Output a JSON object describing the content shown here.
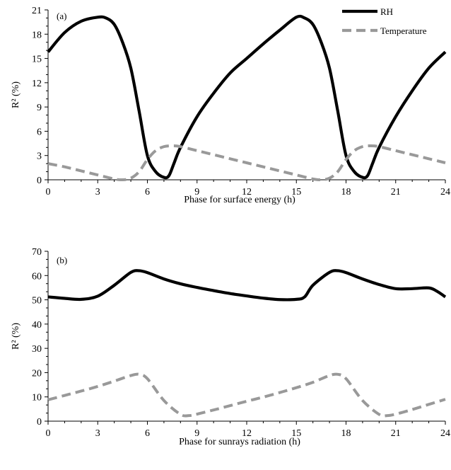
{
  "chart_data": [
    {
      "type": "line",
      "panel_label": "(a)",
      "xlabel": "Phase for surface energy (h)",
      "ylabel": "R² (%)",
      "xlim": [
        0,
        24
      ],
      "ylim": [
        0,
        21
      ],
      "xticks": [
        0,
        3,
        6,
        9,
        12,
        15,
        18,
        21,
        24
      ],
      "yticks": [
        0,
        3,
        6,
        9,
        12,
        15,
        18,
        21
      ],
      "grid": false,
      "legend": "top-right",
      "series": [
        {
          "name": "RH",
          "style": "solid",
          "color": "#000000",
          "x": [
            0,
            1,
            2,
            3,
            3.5,
            4,
            4.5,
            5,
            5.5,
            6,
            6.5,
            7,
            7.3,
            7.6,
            8,
            9,
            10,
            11,
            12,
            13,
            14,
            15,
            15.5,
            16,
            16.5,
            17,
            17.5,
            18,
            18.5,
            19,
            19.3,
            19.6,
            20,
            21,
            22,
            23,
            24
          ],
          "y": [
            15.8,
            18.2,
            19.6,
            20.1,
            20.0,
            19.2,
            17.0,
            13.8,
            8.5,
            3.0,
            1.0,
            0.3,
            0.5,
            2.0,
            4.0,
            7.8,
            10.7,
            13.2,
            15.0,
            16.8,
            18.5,
            20.1,
            20.0,
            19.2,
            17.0,
            13.8,
            8.5,
            3.0,
            1.0,
            0.3,
            0.5,
            2.0,
            4.0,
            7.8,
            11.0,
            13.8,
            15.8
          ]
        },
        {
          "name": "Temperature",
          "style": "dashed",
          "color": "#999999",
          "x": [
            0,
            1,
            2,
            3,
            4,
            4.5,
            5,
            5.5,
            6,
            6.5,
            7,
            7.5,
            8,
            9,
            10,
            11,
            12,
            13,
            14,
            15,
            16,
            16.5,
            17,
            17.5,
            18,
            18.5,
            19,
            19.5,
            20,
            21,
            22,
            23,
            24
          ],
          "y": [
            2.0,
            1.6,
            1.1,
            0.6,
            0.1,
            0.0,
            0.2,
            1.0,
            2.5,
            3.6,
            4.1,
            4.2,
            4.1,
            3.6,
            3.1,
            2.6,
            2.1,
            1.6,
            1.1,
            0.6,
            0.1,
            0.0,
            0.2,
            1.0,
            2.5,
            3.6,
            4.1,
            4.2,
            4.1,
            3.6,
            3.1,
            2.6,
            2.1
          ]
        }
      ]
    },
    {
      "type": "line",
      "panel_label": "(b)",
      "xlabel": "Phase for sunrays radiation (h)",
      "ylabel": "R² (%)",
      "xlim": [
        0,
        24
      ],
      "ylim": [
        0,
        70
      ],
      "xticks": [
        0,
        3,
        6,
        9,
        12,
        15,
        18,
        21,
        24
      ],
      "yticks": [
        0,
        10,
        20,
        30,
        40,
        50,
        60,
        70
      ],
      "grid": false,
      "series": [
        {
          "name": "RH",
          "style": "solid",
          "color": "#000000",
          "x": [
            0,
            1,
            2,
            3,
            4,
            5,
            5.5,
            6,
            7,
            8,
            9,
            10,
            11,
            12,
            13,
            14,
            15,
            15.5,
            16,
            17,
            17.5,
            18,
            19,
            20,
            21,
            22,
            23,
            23.5,
            24
          ],
          "y": [
            51.2,
            50.6,
            50.2,
            51.5,
            56.0,
            61.3,
            62.0,
            61.2,
            58.6,
            56.6,
            55.1,
            53.8,
            52.6,
            51.6,
            50.7,
            50.1,
            50.2,
            51.2,
            56.0,
            61.3,
            62.0,
            61.2,
            58.6,
            56.3,
            54.6,
            54.6,
            54.9,
            53.5,
            51.2
          ]
        },
        {
          "name": "Temperature",
          "style": "dashed",
          "color": "#999999",
          "x": [
            0,
            1,
            2,
            3,
            4,
            5,
            5.5,
            6,
            7,
            8,
            8.5,
            9,
            10,
            11,
            12,
            13,
            14,
            15,
            16,
            17,
            17.5,
            18,
            19,
            20,
            20.5,
            21,
            22,
            23,
            24
          ],
          "y": [
            8.8,
            10.6,
            12.4,
            14.3,
            16.5,
            18.8,
            19.3,
            17.5,
            8.5,
            2.8,
            2.3,
            2.9,
            4.6,
            6.4,
            8.2,
            9.9,
            11.8,
            13.8,
            16.0,
            18.8,
            19.3,
            17.5,
            8.5,
            2.8,
            2.3,
            2.9,
            4.8,
            6.9,
            9.0
          ]
        }
      ]
    }
  ]
}
